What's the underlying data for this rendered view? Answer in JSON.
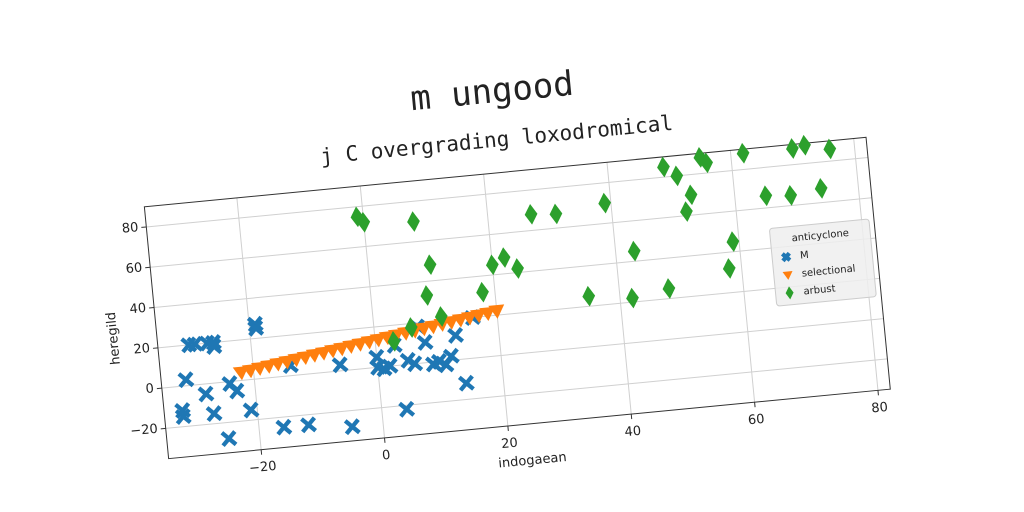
{
  "chart_data": {
    "type": "scatter",
    "title": "m ungood",
    "subtitle": "j C overgrading loxodromical",
    "xlabel": "indogaean",
    "ylabel": "heregild",
    "xlim": [
      -35,
      82
    ],
    "ylim": [
      -35,
      90
    ],
    "xticks": [
      {
        "value": -20,
        "label": "−20"
      },
      0,
      20,
      40,
      60,
      80
    ],
    "yticks": [
      {
        "value": -20,
        "label": "−20"
      },
      0,
      20,
      40,
      60,
      80
    ],
    "grid": true,
    "legend": "center right",
    "legend_title": "anticyclone",
    "series": [
      {
        "name": "M",
        "color": "#1f77b4",
        "marker": "x",
        "x": [
          -32,
          -32,
          -31,
          -30,
          -29,
          -28,
          -27,
          -27,
          -26,
          -26,
          -25,
          -24,
          -23,
          -21,
          -19,
          -19,
          -16,
          -12,
          -14,
          -6,
          -5,
          0,
          0,
          1,
          2,
          3,
          4,
          5,
          6,
          7,
          8,
          9,
          10,
          11,
          12,
          14,
          16,
          13
        ],
        "values": [
          -12,
          -15,
          3,
          20,
          20,
          -5,
          -15,
          20,
          18,
          20,
          -28,
          -1,
          -5,
          -15,
          27,
          25,
          -25,
          -25,
          5,
          3,
          -28,
          0,
          5,
          -1,
          0,
          10,
          -22,
          2,
          0,
          18,
          10,
          -1,
          0,
          -2,
          2,
          -12,
          20,
          12
        ]
      },
      {
        "name": "selectional",
        "color": "#ff7f0e",
        "marker": "v",
        "x": [
          -22,
          -20.5,
          -19,
          -17.5,
          -16,
          -14.5,
          -13,
          -11.5,
          -10,
          -8.5,
          -7,
          -5.5,
          -4,
          -2.5,
          -1,
          0.5,
          2,
          3.5,
          5,
          6.5,
          8,
          9.5,
          11,
          12.5,
          14,
          15.5,
          17,
          18.5,
          20
        ],
        "values": [
          4,
          4.6,
          5.3,
          5.9,
          6.6,
          7.2,
          7.9,
          8.5,
          9.2,
          9.8,
          10.5,
          11.1,
          11.8,
          12.4,
          13.1,
          13.7,
          14.4,
          15,
          15.7,
          16.3,
          17,
          17.6,
          18.3,
          18.9,
          19.6,
          20.2,
          20.9,
          21.5,
          22.2
        ]
      },
      {
        "name": "arbust",
        "color": "#2ca02c",
        "marker": "D",
        "x": [
          -1,
          0,
          8,
          9,
          10,
          11,
          3,
          6,
          18,
          20,
          22,
          24,
          27,
          31,
          35,
          39,
          42,
          43,
          48,
          49,
          51,
          52,
          53,
          55,
          56,
          58,
          59,
          62,
          65,
          69,
          70,
          72,
          74,
          76
        ],
        "values": [
          75,
          72,
          70,
          33,
          48,
          22,
          12,
          18,
          32,
          45,
          48,
          42,
          68,
          67,
          25,
          70,
          22,
          45,
          25,
          85,
          80,
          62,
          70,
          88,
          85,
          32,
          45,
          88,
          66,
          65,
          88,
          89,
          67,
          86
        ]
      }
    ]
  }
}
